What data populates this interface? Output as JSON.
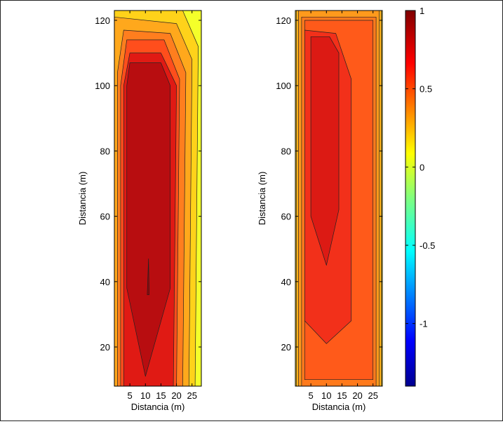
{
  "chart_data": [
    {
      "type": "heatmap",
      "panel": "left",
      "title": "",
      "xlabel": "Distancia (m)",
      "ylabel": "Distancia (m)",
      "xlim": [
        0,
        28
      ],
      "ylim": [
        8,
        123
      ],
      "xticks": [
        5,
        10,
        15,
        20,
        25
      ],
      "yticks": [
        20,
        40,
        60,
        80,
        100,
        120
      ],
      "contour_levels": [
        {
          "value": 0.15,
          "color": "#f4ff2a",
          "extent": [
            [
              0,
              8
            ],
            [
              28,
              8
            ],
            [
              28,
              123
            ],
            [
              0,
              123
            ]
          ]
        },
        {
          "value": 0.25,
          "color": "#ffd21a",
          "extent": [
            [
              0,
              8
            ],
            [
              26,
              8
            ],
            [
              27,
              112
            ],
            [
              22,
              123
            ],
            [
              0,
              123
            ]
          ]
        },
        {
          "value": 0.35,
          "color": "#ffa81c",
          "extent": [
            [
              0,
              8
            ],
            [
              24,
              8
            ],
            [
              25,
              108
            ],
            [
              20,
              119
            ],
            [
              0,
              121
            ],
            [
              0,
              8
            ]
          ]
        },
        {
          "value": 0.45,
          "color": "#ff7e1e",
          "extent": [
            [
              1,
              8
            ],
            [
              22,
              8
            ],
            [
              23,
              104
            ],
            [
              18,
              116
            ],
            [
              3,
              117
            ],
            [
              1,
              104
            ]
          ]
        },
        {
          "value": 0.55,
          "color": "#ff4e1c",
          "extent": [
            [
              2,
              8
            ],
            [
              20,
              8
            ],
            [
              21,
              102
            ],
            [
              16,
              114
            ],
            [
              4,
              114
            ],
            [
              2,
              100
            ]
          ]
        },
        {
          "value": 0.7,
          "color": "#e01a14",
          "extent": [
            [
              3,
              8
            ],
            [
              19,
              8
            ],
            [
              20,
              100
            ],
            [
              15,
              110
            ],
            [
              5,
              110
            ],
            [
              3,
              100
            ]
          ]
        },
        {
          "value": 0.85,
          "color": "#b80d10",
          "extent": [
            [
              10,
              11
            ],
            [
              18,
              38
            ],
            [
              18,
              100
            ],
            [
              15,
              107
            ],
            [
              5,
              107
            ],
            [
              4,
              100
            ],
            [
              4,
              38
            ]
          ]
        },
        {
          "value": 0.95,
          "color": "#9a0408",
          "extent": [
            [
              10.6,
              36
            ],
            [
              11.2,
              36
            ],
            [
              11,
              47
            ]
          ]
        }
      ]
    },
    {
      "type": "heatmap",
      "panel": "right",
      "title": "",
      "xlabel": "Distancia (m)",
      "ylabel": "Distancia (m)",
      "xlim": [
        0,
        28
      ],
      "ylim": [
        8,
        123
      ],
      "xticks": [
        5,
        10,
        15,
        20,
        25
      ],
      "yticks": [
        20,
        40,
        60,
        80,
        100,
        120
      ],
      "contour_levels": [
        {
          "value": 0.2,
          "color": "#ffde1c",
          "extent": [
            [
              0,
              8
            ],
            [
              28,
              8
            ],
            [
              28,
              123
            ],
            [
              0,
              123
            ]
          ]
        },
        {
          "value": 0.3,
          "color": "#ffb41a",
          "extent": [
            [
              0.3,
              8
            ],
            [
              27.7,
              8
            ],
            [
              27.7,
              123
            ],
            [
              0.3,
              123
            ]
          ]
        },
        {
          "value": 0.4,
          "color": "#ff9a1c",
          "extent": [
            [
              1,
              8
            ],
            [
              27,
              8
            ],
            [
              27,
              123
            ],
            [
              1,
              123
            ]
          ]
        },
        {
          "value": 0.5,
          "color": "#ff7a1c",
          "extent": [
            [
              2,
              8
            ],
            [
              26,
              8
            ],
            [
              26,
              121
            ],
            [
              2,
              121
            ]
          ]
        },
        {
          "value": 0.6,
          "color": "#ff5a1a",
          "extent": [
            [
              3,
              10
            ],
            [
              25,
              10
            ],
            [
              25,
              120
            ],
            [
              3,
              120
            ]
          ]
        },
        {
          "value": 0.7,
          "color": "#f2301a",
          "extent": [
            [
              10,
              21
            ],
            [
              18,
              28
            ],
            [
              18,
              102
            ],
            [
              13,
              116
            ],
            [
              3,
              117
            ],
            [
              3,
              28
            ]
          ]
        },
        {
          "value": 0.85,
          "color": "#dc1a14",
          "extent": [
            [
              10,
              45
            ],
            [
              14,
              62
            ],
            [
              14,
              110
            ],
            [
              11,
              115
            ],
            [
              5,
              115
            ],
            [
              5,
              60
            ]
          ]
        }
      ]
    }
  ],
  "colorbar": {
    "range": [
      -1.4,
      1
    ],
    "tick_values": [
      1,
      0.5,
      0,
      -0.5,
      -1
    ],
    "tick_labels": [
      "1",
      "0.5",
      "0",
      "-0.5",
      "-1"
    ],
    "colormap": "jet"
  }
}
